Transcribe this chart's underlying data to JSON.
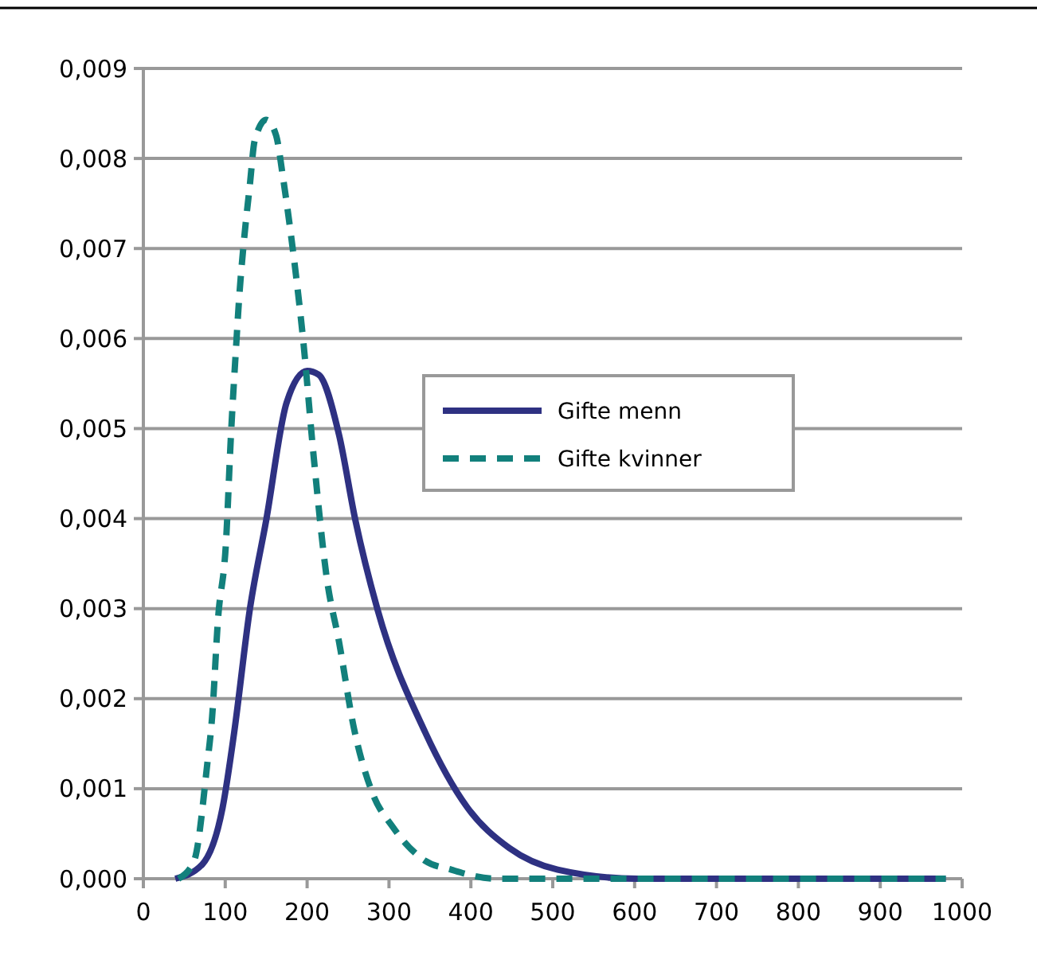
{
  "chart_data": {
    "type": "line",
    "xlim": [
      0,
      1000
    ],
    "xticks": [
      0,
      100,
      200,
      300,
      400,
      500,
      600,
      700,
      800,
      900,
      1000
    ],
    "ylim": [
      0,
      0.009
    ],
    "yticks": [
      {
        "value": 0,
        "label": "0,000"
      },
      {
        "value": 0.001,
        "label": "0,001"
      },
      {
        "value": 0.002,
        "label": "0,002"
      },
      {
        "value": 0.003,
        "label": "0,003"
      },
      {
        "value": 0.004,
        "label": "0,004"
      },
      {
        "value": 0.005,
        "label": "0,005"
      },
      {
        "value": 0.006,
        "label": "0,006"
      },
      {
        "value": 0.007,
        "label": "0,007"
      },
      {
        "value": 0.008,
        "label": "0,008"
      },
      {
        "value": 0.009,
        "label": "0,009"
      }
    ],
    "grid": "y",
    "legend": "right",
    "series": [
      {
        "name": "Gifte menn",
        "color": "#2e3182",
        "line_style": "solid",
        "x": [
          39,
          72,
          97,
          111,
          130,
          150,
          175,
          200,
          214,
          239,
          259,
          286,
          344,
          395,
          447,
          506,
          603,
          700,
          800,
          900,
          980
        ],
        "values": [
          0,
          0.00016,
          0.0008,
          0.00163,
          0.00299,
          0.00398,
          0.00529,
          0.00564,
          0.0056,
          0.00493,
          0.00398,
          0.00299,
          0.00163,
          0.0008,
          0.00034,
          0.0001,
          0,
          0,
          0,
          0,
          0
        ]
      },
      {
        "name": "Gifte kvinner",
        "color": "#12807c",
        "line_style": "dashed",
        "x": [
          43,
          62,
          78,
          84,
          91,
          101,
          107,
          113,
          117,
          123,
          130,
          136,
          150,
          162,
          171,
          181,
          188,
          195,
          208,
          224,
          239,
          257,
          279,
          305,
          344,
          376,
          430,
          506,
          600,
          700,
          800,
          900,
          980
        ],
        "values": [
          0,
          0.0002,
          0.00127,
          0.0018,
          0.00286,
          0.00375,
          0.00493,
          0.00587,
          0.00645,
          0.0071,
          0.0077,
          0.0082,
          0.00843,
          0.00826,
          0.00776,
          0.0071,
          0.00658,
          0.006,
          0.00469,
          0.00334,
          0.00263,
          0.00168,
          0.00097,
          0.00057,
          0.0002,
          0.0001,
          0,
          0,
          0,
          0,
          0,
          0,
          0
        ]
      }
    ]
  }
}
